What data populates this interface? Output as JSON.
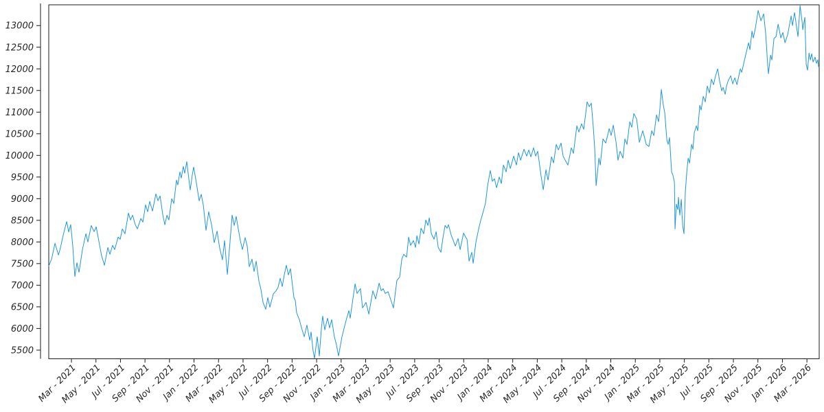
{
  "figure": {
    "background": "#ffffff",
    "border_color": "#1a1a1a",
    "tick_color": "#1a1a1a",
    "tick_label_color": "#262626"
  },
  "chart_data": {
    "type": "line",
    "title": "",
    "xlabel": "",
    "ylabel": "",
    "legend": null,
    "grid": false,
    "line_color": "#1e96dc",
    "line_width": 1,
    "x_unit": "months since 2021-01-01 (Mar - 2021 tick = 2)",
    "xlim": [
      0.15,
      63.0
    ],
    "ylim": [
      5300,
      13480
    ],
    "y_ticks": [
      5500,
      6000,
      6500,
      7000,
      7500,
      8000,
      8500,
      9000,
      9500,
      10000,
      10500,
      11000,
      11500,
      12000,
      12500,
      13000
    ],
    "x_ticks": [
      {
        "m": 2,
        "label": "Mar - 2021"
      },
      {
        "m": 4,
        "label": "May - 2021"
      },
      {
        "m": 6,
        "label": "Jul - 2021"
      },
      {
        "m": 8,
        "label": "Sep - 2021"
      },
      {
        "m": 10,
        "label": "Nov - 2021"
      },
      {
        "m": 12,
        "label": "Jan - 2022"
      },
      {
        "m": 14,
        "label": "Mar - 2022"
      },
      {
        "m": 16,
        "label": "May - 2022"
      },
      {
        "m": 18,
        "label": "Jul - 2022"
      },
      {
        "m": 20,
        "label": "Sep - 2022"
      },
      {
        "m": 22,
        "label": "Nov - 2022"
      },
      {
        "m": 24,
        "label": "Jan - 2023"
      },
      {
        "m": 26,
        "label": "Mar - 2023"
      },
      {
        "m": 28,
        "label": "May - 2023"
      },
      {
        "m": 30,
        "label": "Jul - 2023"
      },
      {
        "m": 32,
        "label": "Sep - 2023"
      },
      {
        "m": 34,
        "label": "Nov - 2023"
      },
      {
        "m": 36,
        "label": "Jan - 2024"
      },
      {
        "m": 38,
        "label": "Mar - 2024"
      },
      {
        "m": 40,
        "label": "May - 2024"
      },
      {
        "m": 42,
        "label": "Jul - 2024"
      },
      {
        "m": 44,
        "label": "Sep - 2024"
      },
      {
        "m": 46,
        "label": "Nov - 2024"
      },
      {
        "m": 48,
        "label": "Jan - 2025"
      },
      {
        "m": 50,
        "label": "Mar - 2025"
      },
      {
        "m": 52,
        "label": "May - 2025"
      },
      {
        "m": 54,
        "label": "Jul - 2025"
      },
      {
        "m": 56,
        "label": "Sep - 2025"
      },
      {
        "m": 58,
        "label": "Nov - 2025"
      },
      {
        "m": 60,
        "label": "Jan - 2026"
      },
      {
        "m": 62,
        "label": "Mar - 2026"
      }
    ],
    "points": [
      [
        0.15,
        7445
      ],
      [
        0.38,
        7600
      ],
      [
        0.66,
        7970
      ],
      [
        0.94,
        7700
      ],
      [
        1.1,
        7860
      ],
      [
        1.33,
        8160
      ],
      [
        1.61,
        8470
      ],
      [
        1.78,
        8230
      ],
      [
        1.94,
        8400
      ],
      [
        2.11,
        7900
      ],
      [
        2.28,
        7200
      ],
      [
        2.45,
        7520
      ],
      [
        2.62,
        7300
      ],
      [
        2.9,
        7825
      ],
      [
        3.18,
        8190
      ],
      [
        3.34,
        8000
      ],
      [
        3.62,
        8381
      ],
      [
        3.85,
        8238
      ],
      [
        4.02,
        8349
      ],
      [
        4.3,
        7921
      ],
      [
        4.46,
        7683
      ],
      [
        4.69,
        7460
      ],
      [
        4.97,
        7873
      ],
      [
        5.14,
        7714
      ],
      [
        5.36,
        7921
      ],
      [
        5.53,
        7825
      ],
      [
        5.81,
        8111
      ],
      [
        5.98,
        8063
      ],
      [
        6.15,
        8302
      ],
      [
        6.37,
        8190
      ],
      [
        6.65,
        8667
      ],
      [
        6.82,
        8508
      ],
      [
        6.99,
        8619
      ],
      [
        7.21,
        8397
      ],
      [
        7.38,
        8302
      ],
      [
        7.66,
        8540
      ],
      [
        7.83,
        8460
      ],
      [
        8.05,
        8857
      ],
      [
        8.22,
        8698
      ],
      [
        8.39,
        8937
      ],
      [
        8.61,
        8714
      ],
      [
        8.89,
        9111
      ],
      [
        9.06,
        8952
      ],
      [
        9.23,
        9063
      ],
      [
        9.45,
        8635
      ],
      [
        9.62,
        8397
      ],
      [
        9.79,
        8619
      ],
      [
        9.95,
        8508
      ],
      [
        10.18,
        9000
      ],
      [
        10.35,
        8889
      ],
      [
        10.57,
        9429
      ],
      [
        10.68,
        9317
      ],
      [
        10.85,
        9619
      ],
      [
        10.96,
        9476
      ],
      [
        11.13,
        9746
      ],
      [
        11.24,
        9587
      ],
      [
        11.41,
        9857
      ],
      [
        11.58,
        9450
      ],
      [
        11.69,
        9200
      ],
      [
        11.86,
        9550
      ],
      [
        11.97,
        9730
      ],
      [
        12.2,
        9350
      ],
      [
        12.42,
        8950
      ],
      [
        12.59,
        9100
      ],
      [
        12.76,
        8850
      ],
      [
        12.98,
        8270
      ],
      [
        13.2,
        8698
      ],
      [
        13.43,
        8400
      ],
      [
        13.65,
        7984
      ],
      [
        13.88,
        8250
      ],
      [
        14.1,
        7850
      ],
      [
        14.32,
        7587
      ],
      [
        14.49,
        8032
      ],
      [
        14.72,
        7250
      ],
      [
        14.88,
        7800
      ],
      [
        15.11,
        8620
      ],
      [
        15.28,
        8380
      ],
      [
        15.44,
        8590
      ],
      [
        15.61,
        8300
      ],
      [
        15.78,
        8030
      ],
      [
        15.95,
        7825
      ],
      [
        16.17,
        8100
      ],
      [
        16.34,
        7900
      ],
      [
        16.51,
        7429
      ],
      [
        16.73,
        7603
      ],
      [
        16.9,
        7317
      ],
      [
        17.07,
        7556
      ],
      [
        17.29,
        7100
      ],
      [
        17.46,
        6900
      ],
      [
        17.63,
        6603
      ],
      [
        17.85,
        6444
      ],
      [
        18.02,
        6714
      ],
      [
        18.19,
        6492
      ],
      [
        18.47,
        6800
      ],
      [
        18.69,
        6870
      ],
      [
        18.86,
        6952
      ],
      [
        19.03,
        7160
      ],
      [
        19.2,
        6969
      ],
      [
        19.37,
        7250
      ],
      [
        19.53,
        7460
      ],
      [
        19.7,
        7238
      ],
      [
        19.87,
        7381
      ],
      [
        20.15,
        6714
      ],
      [
        20.26,
        6651
      ],
      [
        20.37,
        6365
      ],
      [
        20.6,
        6200
      ],
      [
        20.82,
        5968
      ],
      [
        20.99,
        5810
      ],
      [
        21.21,
        6079
      ],
      [
        21.44,
        5730
      ],
      [
        21.55,
        5921
      ],
      [
        21.71,
        5492
      ],
      [
        21.83,
        5310
      ],
      [
        22.05,
        5810
      ],
      [
        22.22,
        5365
      ],
      [
        22.39,
        6000
      ],
      [
        22.5,
        6286
      ],
      [
        22.67,
        5968
      ],
      [
        22.89,
        6238
      ],
      [
        23.06,
        6016
      ],
      [
        23.23,
        6206
      ],
      [
        23.45,
        5810
      ],
      [
        23.62,
        5620
      ],
      [
        23.79,
        5365
      ],
      [
        24.07,
        5810
      ],
      [
        24.35,
        6127
      ],
      [
        24.63,
        6413
      ],
      [
        24.74,
        6238
      ],
      [
        24.97,
        6700
      ],
      [
        25.14,
        7032
      ],
      [
        25.3,
        6810
      ],
      [
        25.58,
        6921
      ],
      [
        25.75,
        6476
      ],
      [
        26.03,
        6603
      ],
      [
        26.26,
        6333
      ],
      [
        26.59,
        6873
      ],
      [
        26.82,
        6682
      ],
      [
        27.1,
        7048
      ],
      [
        27.27,
        6873
      ],
      [
        27.43,
        6921
      ],
      [
        27.6,
        6810
      ],
      [
        27.83,
        6850
      ],
      [
        27.99,
        6714
      ],
      [
        28.27,
        6476
      ],
      [
        28.55,
        7111
      ],
      [
        28.78,
        7190
      ],
      [
        28.95,
        7603
      ],
      [
        29.11,
        7714
      ],
      [
        29.34,
        7650
      ],
      [
        29.51,
        8111
      ],
      [
        29.67,
        7921
      ],
      [
        29.9,
        8032
      ],
      [
        30.07,
        7873
      ],
      [
        30.18,
        8143
      ],
      [
        30.35,
        7952
      ],
      [
        30.52,
        8317
      ],
      [
        30.74,
        8190
      ],
      [
        30.91,
        8508
      ],
      [
        31.08,
        8381
      ],
      [
        31.19,
        8556
      ],
      [
        31.36,
        8190
      ],
      [
        31.58,
        8063
      ],
      [
        31.75,
        8238
      ],
      [
        31.92,
        7873
      ],
      [
        32.14,
        7762
      ],
      [
        32.31,
        8100
      ],
      [
        32.48,
        8381
      ],
      [
        32.64,
        8317
      ],
      [
        32.76,
        8397
      ],
      [
        32.98,
        8159
      ],
      [
        33.15,
        8032
      ],
      [
        33.32,
        7905
      ],
      [
        33.54,
        8079
      ],
      [
        33.71,
        7825
      ],
      [
        33.99,
        8206
      ],
      [
        34.16,
        8111
      ],
      [
        34.27,
        8063
      ],
      [
        34.44,
        7556
      ],
      [
        34.66,
        7762
      ],
      [
        34.77,
        7508
      ],
      [
        35.0,
        8000
      ],
      [
        35.22,
        8302
      ],
      [
        35.39,
        8500
      ],
      [
        35.56,
        8667
      ],
      [
        35.78,
        8900
      ],
      [
        35.95,
        9302
      ],
      [
        36.17,
        9651
      ],
      [
        36.34,
        9400
      ],
      [
        36.51,
        9460
      ],
      [
        36.68,
        9254
      ],
      [
        36.9,
        9500
      ],
      [
        37.07,
        9350
      ],
      [
        37.24,
        9778
      ],
      [
        37.46,
        9619
      ],
      [
        37.63,
        9889
      ],
      [
        37.8,
        9698
      ],
      [
        38.08,
        9984
      ],
      [
        38.3,
        9778
      ],
      [
        38.47,
        10063
      ],
      [
        38.64,
        9889
      ],
      [
        38.92,
        10143
      ],
      [
        39.14,
        9984
      ],
      [
        39.31,
        10127
      ],
      [
        39.48,
        9968
      ],
      [
        39.7,
        10175
      ],
      [
        39.87,
        9984
      ],
      [
        40.04,
        10095
      ],
      [
        40.32,
        9508
      ],
      [
        40.49,
        9206
      ],
      [
        40.71,
        9667
      ],
      [
        40.88,
        9429
      ],
      [
        41.16,
        9968
      ],
      [
        41.33,
        9825
      ],
      [
        41.55,
        10254
      ],
      [
        41.72,
        10127
      ],
      [
        41.94,
        10286
      ],
      [
        42.11,
        9984
      ],
      [
        42.28,
        9889
      ],
      [
        42.5,
        9778
      ],
      [
        42.78,
        10175
      ],
      [
        42.95,
        10048
      ],
      [
        43.23,
        10683
      ],
      [
        43.4,
        10540
      ],
      [
        43.62,
        10730
      ],
      [
        43.79,
        10603
      ],
      [
        44.07,
        11238
      ],
      [
        44.24,
        11127
      ],
      [
        44.41,
        11206
      ],
      [
        44.58,
        10619
      ],
      [
        44.69,
        10143
      ],
      [
        44.8,
        9302
      ],
      [
        45.03,
        9937
      ],
      [
        45.14,
        9778
      ],
      [
        45.36,
        10381
      ],
      [
        45.59,
        10286
      ],
      [
        45.87,
        10619
      ],
      [
        46.03,
        10460
      ],
      [
        46.2,
        10698
      ],
      [
        46.43,
        10302
      ],
      [
        46.59,
        9889
      ],
      [
        46.76,
        10095
      ],
      [
        46.99,
        9937
      ],
      [
        47.15,
        10381
      ],
      [
        47.32,
        10254
      ],
      [
        47.55,
        10778
      ],
      [
        47.71,
        10651
      ],
      [
        47.88,
        10968
      ],
      [
        48.11,
        10841
      ],
      [
        48.33,
        10302
      ],
      [
        48.61,
        10571
      ],
      [
        48.89,
        10254
      ],
      [
        49.11,
        10206
      ],
      [
        49.34,
        10571
      ],
      [
        49.51,
        10460
      ],
      [
        49.73,
        10937
      ],
      [
        49.9,
        10778
      ],
      [
        50.01,
        11095
      ],
      [
        50.12,
        11524
      ],
      [
        50.29,
        11150
      ],
      [
        50.4,
        10990
      ],
      [
        50.57,
        10365
      ],
      [
        50.68,
        10254
      ],
      [
        50.79,
        10413
      ],
      [
        50.96,
        9619
      ],
      [
        51.07,
        9540
      ],
      [
        51.19,
        9380
      ],
      [
        51.24,
        8302
      ],
      [
        51.35,
        8873
      ],
      [
        51.47,
        8746
      ],
      [
        51.52,
        9032
      ],
      [
        51.63,
        8619
      ],
      [
        51.75,
        8984
      ],
      [
        51.86,
        8381
      ],
      [
        51.97,
        8190
      ],
      [
        52.08,
        9159
      ],
      [
        52.2,
        9620
      ],
      [
        52.31,
        9937
      ],
      [
        52.42,
        9825
      ],
      [
        52.59,
        10254
      ],
      [
        52.7,
        10143
      ],
      [
        52.81,
        10524
      ],
      [
        52.98,
        10683
      ],
      [
        53.09,
        10571
      ],
      [
        53.26,
        11159
      ],
      [
        53.37,
        11048
      ],
      [
        53.54,
        11365
      ],
      [
        53.71,
        11238
      ],
      [
        53.87,
        11603
      ],
      [
        54.04,
        11444
      ],
      [
        54.21,
        11762
      ],
      [
        54.38,
        11635
      ],
      [
        54.55,
        11841
      ],
      [
        54.72,
        12000
      ],
      [
        54.88,
        11714
      ],
      [
        55.05,
        11492
      ],
      [
        55.16,
        11571
      ],
      [
        55.33,
        11413
      ],
      [
        55.44,
        11600
      ],
      [
        55.56,
        11714
      ],
      [
        55.78,
        11841
      ],
      [
        55.95,
        11651
      ],
      [
        56.12,
        11794
      ],
      [
        56.29,
        11635
      ],
      [
        56.57,
        12000
      ],
      [
        56.68,
        11921
      ],
      [
        56.96,
        12270
      ],
      [
        57.24,
        12603
      ],
      [
        57.35,
        12444
      ],
      [
        57.52,
        12873
      ],
      [
        57.63,
        12714
      ],
      [
        57.8,
        12952
      ],
      [
        58.02,
        13349
      ],
      [
        58.25,
        13111
      ],
      [
        58.47,
        13270
      ],
      [
        58.64,
        12794
      ],
      [
        58.81,
        12048
      ],
      [
        58.86,
        11889
      ],
      [
        59.03,
        12317
      ],
      [
        59.14,
        12206
      ],
      [
        59.31,
        12700
      ],
      [
        59.48,
        12746
      ],
      [
        59.65,
        13032
      ],
      [
        59.87,
        12714
      ],
      [
        60.04,
        12841
      ],
      [
        60.21,
        12603
      ],
      [
        60.43,
        12794
      ],
      [
        60.71,
        13222
      ],
      [
        60.82,
        13000
      ],
      [
        60.99,
        13302
      ],
      [
        61.16,
        12952
      ],
      [
        61.27,
        12746
      ],
      [
        61.44,
        13460
      ],
      [
        61.61,
        13079
      ],
      [
        61.66,
        12905
      ],
      [
        61.83,
        13190
      ],
      [
        61.94,
        12100
      ],
      [
        62.05,
        11970
      ],
      [
        62.17,
        12365
      ],
      [
        62.28,
        12206
      ],
      [
        62.39,
        12349
      ],
      [
        62.5,
        12159
      ],
      [
        62.67,
        12270
      ],
      [
        62.78,
        12127
      ],
      [
        62.89,
        12210
      ],
      [
        62.95,
        12048
      ],
      [
        63.0,
        12050
      ]
    ]
  }
}
